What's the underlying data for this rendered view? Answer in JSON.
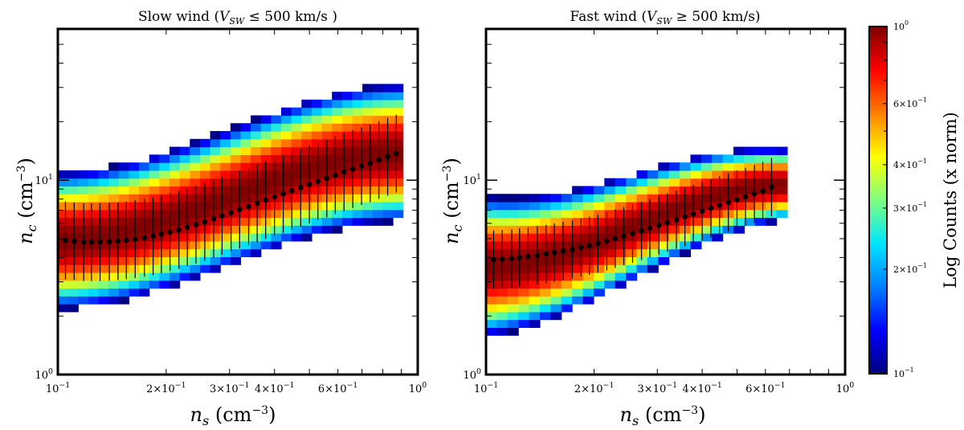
{
  "colors": {
    "frame": "#000000",
    "marker": "#000000",
    "background": "#ffffff",
    "colormap": [
      "#00007f",
      "#0000ff",
      "#007fff",
      "#00e5ff",
      "#7fff7f",
      "#ffff00",
      "#ff7f00",
      "#ff0000",
      "#7f0000"
    ]
  },
  "colorbar": {
    "label": "Log Counts (x norm)",
    "scale": "log",
    "range": [
      0.1,
      1.0
    ],
    "ticks": [
      {
        "value": 1.0,
        "label": "10^0"
      },
      {
        "value": 0.6,
        "label": "6×10^-1"
      },
      {
        "value": 0.4,
        "label": "4×10^-1"
      },
      {
        "value": 0.3,
        "label": "3×10^-1"
      },
      {
        "value": 0.2,
        "label": "2×10^-1"
      },
      {
        "value": 0.1,
        "label": "10^-1"
      }
    ]
  },
  "chart_data": [
    {
      "type": "heatmap",
      "title": "Slow wind (V_SW ≤ 500 km/s )",
      "xlabel": "n_s (cm^-3)",
      "ylabel": "n_c (cm^-3)",
      "xscale": "log",
      "yscale": "log",
      "xlim": [
        0.1,
        1.0
      ],
      "ylim": [
        1.0,
        60.0
      ],
      "xticks": [
        {
          "value": 0.1,
          "label": "10^-1"
        },
        {
          "value": 0.2,
          "label": "2×10^-1"
        },
        {
          "value": 0.3,
          "label": "3×10^-1"
        },
        {
          "value": 0.4,
          "label": "4×10^-1"
        },
        {
          "value": 0.6,
          "label": "6×10^-1"
        },
        {
          "value": 1.0,
          "label": "10^0"
        }
      ],
      "yticks": [
        {
          "value": 1.0,
          "label": "10^0"
        },
        {
          "value": 10.0,
          "label": "10^1"
        }
      ],
      "distribution": {
        "x_range": [
          0.1,
          0.91
        ],
        "n_bins": 34,
        "center_start": 4.9,
        "center_end": 13.8,
        "log_halfwidth_start": 0.35,
        "log_halfwidth_end": 0.35,
        "edge_density": 0.1
      },
      "medians": {
        "x": [
          0.105,
          0.111,
          0.118,
          0.124,
          0.131,
          0.139,
          0.147,
          0.155,
          0.164,
          0.174,
          0.184,
          0.194,
          0.205,
          0.217,
          0.229,
          0.242,
          0.256,
          0.271,
          0.286,
          0.303,
          0.32,
          0.339,
          0.358,
          0.378,
          0.4,
          0.423,
          0.447,
          0.473,
          0.5,
          0.528,
          0.559,
          0.59,
          0.624,
          0.66,
          0.698,
          0.738,
          0.78,
          0.825,
          0.872
        ],
        "y": [
          4.9,
          4.85,
          4.8,
          4.8,
          4.8,
          4.82,
          4.85,
          4.9,
          4.97,
          5.05,
          5.15,
          5.27,
          5.4,
          5.55,
          5.72,
          5.9,
          6.1,
          6.32,
          6.55,
          6.8,
          7.05,
          7.32,
          7.6,
          7.9,
          8.2,
          8.5,
          8.82,
          9.15,
          9.5,
          9.85,
          10.2,
          10.6,
          11.0,
          11.4,
          11.8,
          12.2,
          12.7,
          13.2,
          13.7
        ],
        "err_log": 0.2
      }
    },
    {
      "type": "heatmap",
      "title": "Fast wind (V_SW ≥ 500 km/s)",
      "xlabel": "n_s (cm^-3)",
      "ylabel": "n_c (cm^-3)",
      "xscale": "log",
      "yscale": "log",
      "xlim": [
        0.1,
        1.0
      ],
      "ylim": [
        1.0,
        60.0
      ],
      "xticks": [
        {
          "value": 0.1,
          "label": "10^-1"
        },
        {
          "value": 0.2,
          "label": "2×10^-1"
        },
        {
          "value": 0.3,
          "label": "3×10^-1"
        },
        {
          "value": 0.4,
          "label": "4×10^-1"
        },
        {
          "value": 0.6,
          "label": "6×10^-1"
        },
        {
          "value": 1.0,
          "label": "10^0"
        }
      ],
      "yticks": [
        {
          "value": 1.0,
          "label": "10^0"
        },
        {
          "value": 10.0,
          "label": "10^1"
        }
      ],
      "distribution": {
        "x_range": [
          0.1,
          0.69
        ],
        "n_bins": 28,
        "center_start": 3.6,
        "center_end": 9.5,
        "log_halfwidth_start": 0.36,
        "log_halfwidth_end": 0.18,
        "edge_density": 0.1
      },
      "medians": {
        "x": [
          0.105,
          0.111,
          0.118,
          0.124,
          0.131,
          0.139,
          0.147,
          0.155,
          0.164,
          0.174,
          0.184,
          0.194,
          0.205,
          0.217,
          0.229,
          0.242,
          0.256,
          0.271,
          0.286,
          0.303,
          0.32,
          0.339,
          0.358,
          0.378,
          0.4,
          0.423,
          0.447,
          0.473,
          0.5,
          0.528,
          0.559,
          0.59,
          0.624
        ],
        "y": [
          3.9,
          3.92,
          3.95,
          4.0,
          4.05,
          4.1,
          4.17,
          4.24,
          4.32,
          4.4,
          4.5,
          4.6,
          4.72,
          4.85,
          5.0,
          5.15,
          5.3,
          5.48,
          5.66,
          5.85,
          6.05,
          6.25,
          6.47,
          6.7,
          6.93,
          7.17,
          7.42,
          7.67,
          7.93,
          8.2,
          8.5,
          8.8,
          9.2
        ],
        "err_log": 0.15
      }
    }
  ]
}
